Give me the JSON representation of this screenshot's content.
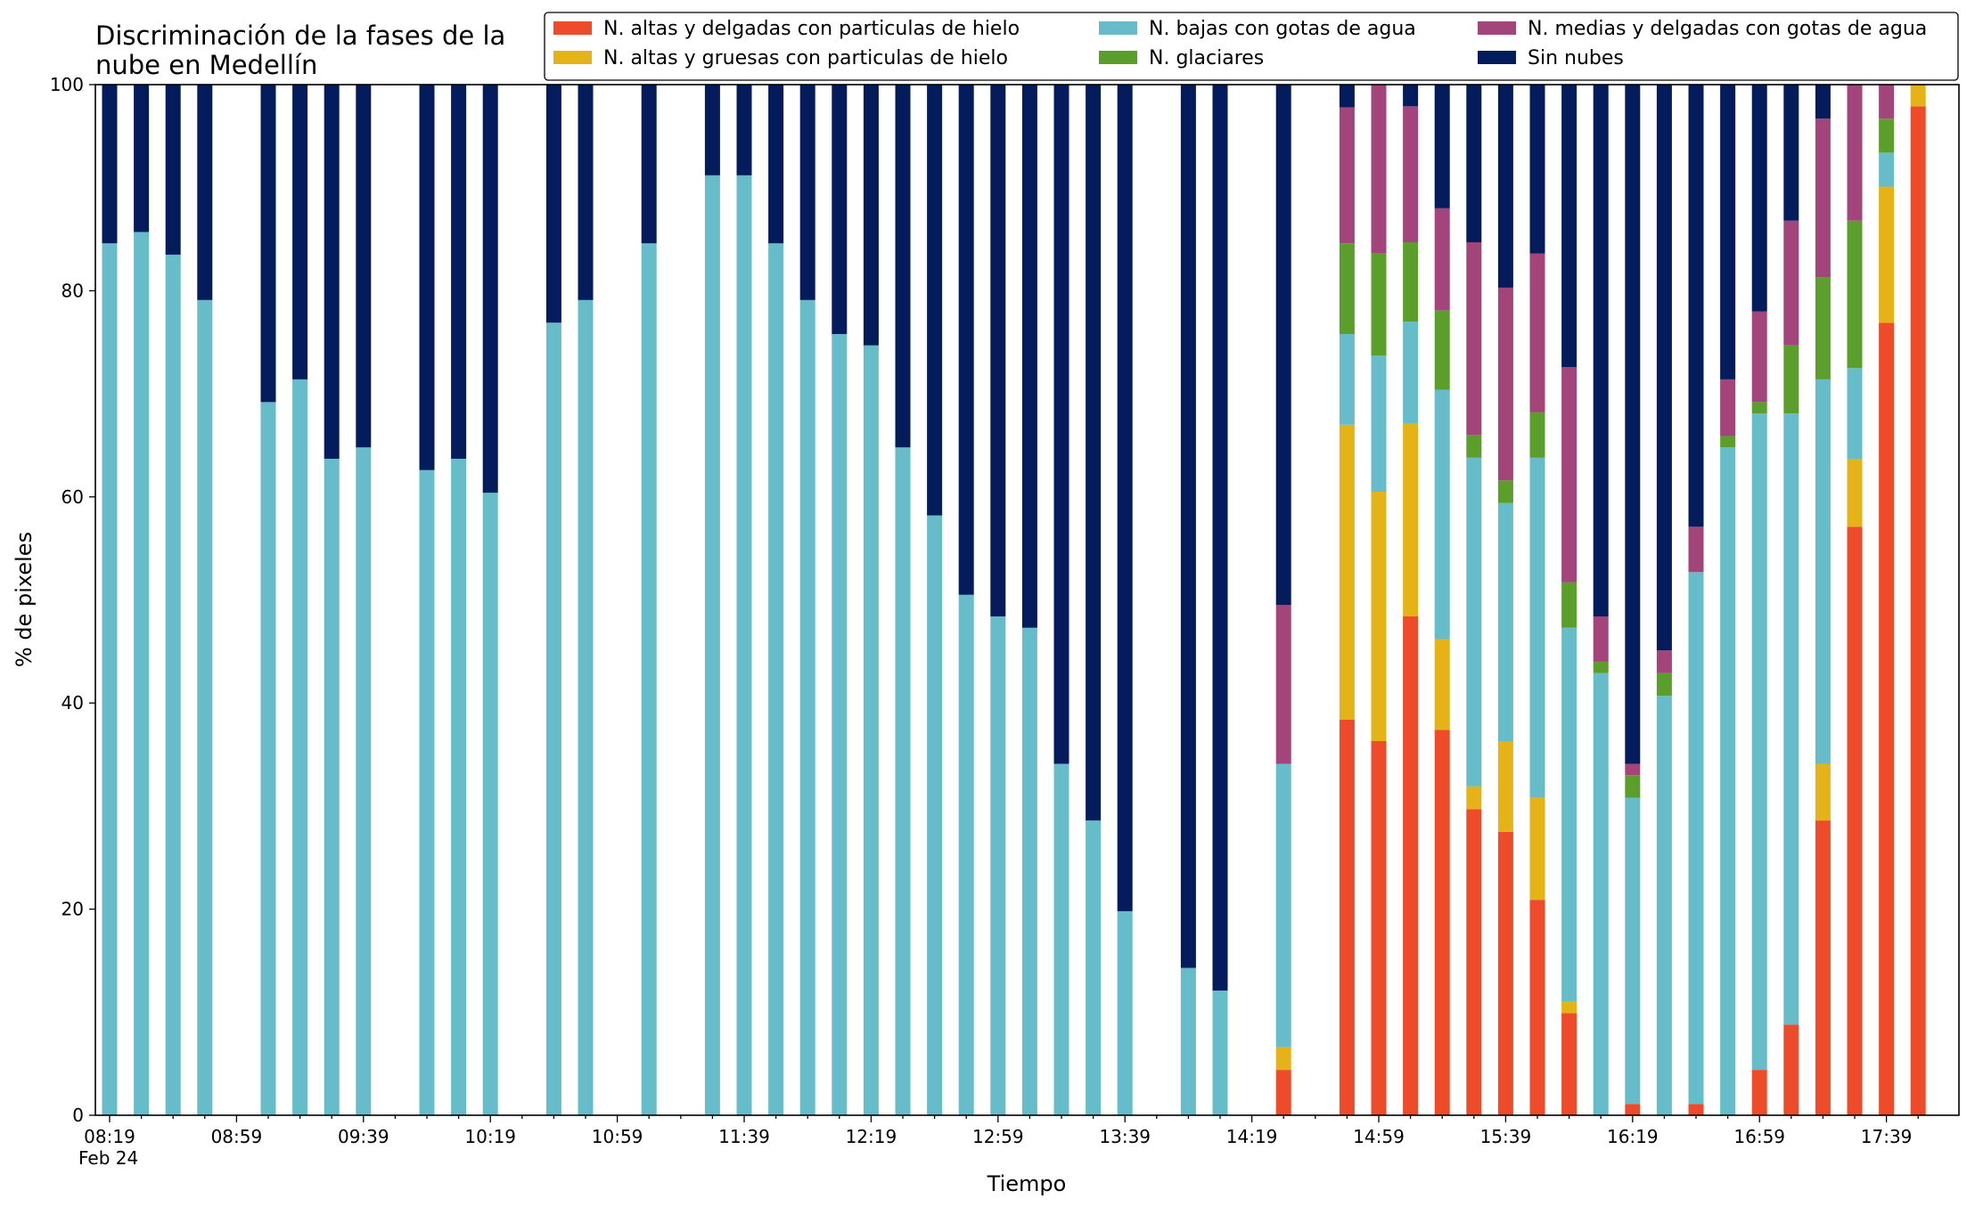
{
  "chart_data": {
    "type": "bar",
    "stacked": true,
    "title_line1": "Discriminación de la fases de la",
    "title_line2": "nube en Medellín",
    "xlabel": "Tiempo",
    "ylabel": "% de pixeles",
    "ylim": [
      0,
      100
    ],
    "yticks": [
      0,
      20,
      40,
      60,
      80,
      100
    ],
    "xtick_labels": [
      "08:19",
      "08:59",
      "09:39",
      "10:19",
      "10:59",
      "11:39",
      "12:19",
      "12:59",
      "13:39",
      "14:19",
      "14:59",
      "15:39",
      "16:19",
      "16:59",
      "17:39"
    ],
    "xtick_sublabel": "Feb 24",
    "grid": false,
    "legend_position": "top-right",
    "x": [
      "08:19",
      "08:29",
      "08:39",
      "08:49",
      "08:59",
      "09:09",
      "09:19",
      "09:29",
      "09:39",
      "09:49",
      "09:59",
      "10:09",
      "10:19",
      "10:29",
      "10:39",
      "10:49",
      "10:59",
      "11:09",
      "11:19",
      "11:29",
      "11:39",
      "11:49",
      "11:59",
      "12:09",
      "12:19",
      "12:29",
      "12:39",
      "12:49",
      "12:59",
      "13:09",
      "13:19",
      "13:29",
      "13:39",
      "13:49",
      "13:59",
      "14:09",
      "14:19",
      "14:29",
      "14:39",
      "14:49",
      "14:59",
      "15:09",
      "15:19",
      "15:29",
      "15:39",
      "15:49",
      "15:59",
      "16:09",
      "16:19",
      "16:29",
      "16:39",
      "16:49",
      "16:59",
      "17:09",
      "17:19",
      "17:29",
      "17:39",
      "17:49"
    ],
    "series": [
      {
        "name": "N. altas y delgadas con particulas de hielo",
        "color": "#ee4b2b",
        "values": [
          0,
          0,
          0,
          0,
          null,
          0,
          0,
          0,
          0,
          null,
          0,
          0,
          0,
          null,
          0,
          0,
          null,
          0,
          null,
          0,
          0,
          0,
          0,
          0,
          0,
          0,
          0,
          0,
          0,
          0,
          0,
          0,
          0,
          null,
          0,
          0,
          null,
          4.4,
          null,
          38.4,
          36.3,
          48.4,
          37.4,
          29.7,
          27.5,
          20.9,
          9.9,
          0,
          1.1,
          0,
          1.1,
          0,
          4.4,
          8.8,
          28.6,
          57.1,
          76.9,
          97.9
        ]
      },
      {
        "name": "N. altas y gruesas con particulas de hielo",
        "color": "#e5b318",
        "values": [
          0,
          0,
          0,
          0,
          null,
          0,
          0,
          0,
          0,
          null,
          0,
          0,
          0,
          null,
          0,
          0,
          null,
          0,
          null,
          0,
          0,
          0,
          0,
          0,
          0,
          0,
          0,
          0,
          0,
          0,
          0,
          0,
          0,
          null,
          0,
          0,
          null,
          2.2,
          null,
          28.6,
          24.2,
          18.7,
          8.8,
          2.2,
          8.8,
          9.9,
          1.1,
          0,
          0,
          0,
          0,
          0,
          0,
          0,
          5.5,
          6.6,
          13.2,
          2.1
        ]
      },
      {
        "name": "N. bajas con gotas de agua",
        "color": "#66bdc9",
        "values": [
          84.6,
          85.7,
          83.5,
          79.1,
          null,
          69.2,
          71.4,
          63.7,
          64.8,
          null,
          62.6,
          63.7,
          60.4,
          null,
          76.9,
          79.1,
          null,
          84.6,
          null,
          91.2,
          91.2,
          84.6,
          79.1,
          75.8,
          74.7,
          64.8,
          58.2,
          50.5,
          48.4,
          47.3,
          34.1,
          28.6,
          19.8,
          null,
          14.3,
          12.1,
          null,
          27.5,
          null,
          8.8,
          13.2,
          9.9,
          24.2,
          31.9,
          23.1,
          33.0,
          36.3,
          42.9,
          29.7,
          40.7,
          51.6,
          64.8,
          63.7,
          59.3,
          37.3,
          8.8,
          3.3,
          0
        ]
      },
      {
        "name": "N. glaciares",
        "color": "#5c9e2c",
        "values": [
          0,
          0,
          0,
          0,
          null,
          0,
          0,
          0,
          0,
          null,
          0,
          0,
          0,
          null,
          0,
          0,
          null,
          0,
          null,
          0,
          0,
          0,
          0,
          0,
          0,
          0,
          0,
          0,
          0,
          0,
          0,
          0,
          0,
          null,
          0,
          0,
          null,
          0,
          null,
          8.8,
          9.9,
          7.7,
          7.7,
          2.2,
          2.2,
          4.4,
          4.4,
          1.1,
          2.2,
          2.2,
          0,
          1.1,
          1.1,
          6.6,
          9.9,
          14.3,
          3.3,
          0
        ]
      },
      {
        "name": "N. medias y delgadas con gotas de agua",
        "color": "#a3457a",
        "values": [
          0,
          0,
          0,
          0,
          null,
          0,
          0,
          0,
          0,
          null,
          0,
          0,
          0,
          null,
          0,
          0,
          null,
          0,
          null,
          0,
          0,
          0,
          0,
          0,
          0,
          0,
          0,
          0,
          0,
          0,
          0,
          0,
          0,
          null,
          0,
          0,
          null,
          15.4,
          null,
          13.2,
          16.4,
          13.2,
          9.9,
          18.7,
          18.7,
          15.4,
          20.9,
          4.4,
          1.1,
          2.2,
          4.4,
          5.5,
          8.8,
          12.1,
          15.4,
          13.2,
          3.3,
          0
        ]
      },
      {
        "name": "Sin nubes",
        "color": "#041c5c",
        "values": [
          15.4,
          14.3,
          16.5,
          20.9,
          null,
          30.8,
          28.6,
          36.3,
          35.2,
          null,
          37.4,
          36.3,
          39.6,
          null,
          23.1,
          20.9,
          null,
          15.4,
          null,
          8.8,
          8.8,
          15.4,
          20.9,
          24.2,
          25.3,
          35.2,
          41.8,
          49.5,
          51.6,
          52.7,
          65.9,
          71.4,
          80.2,
          null,
          85.7,
          87.9,
          null,
          50.5,
          null,
          2.2,
          0,
          2.1,
          12.0,
          15.3,
          19.7,
          16.4,
          27.4,
          51.6,
          65.9,
          54.9,
          42.9,
          28.6,
          22.0,
          13.2,
          3.3,
          0,
          0,
          0
        ]
      }
    ]
  }
}
